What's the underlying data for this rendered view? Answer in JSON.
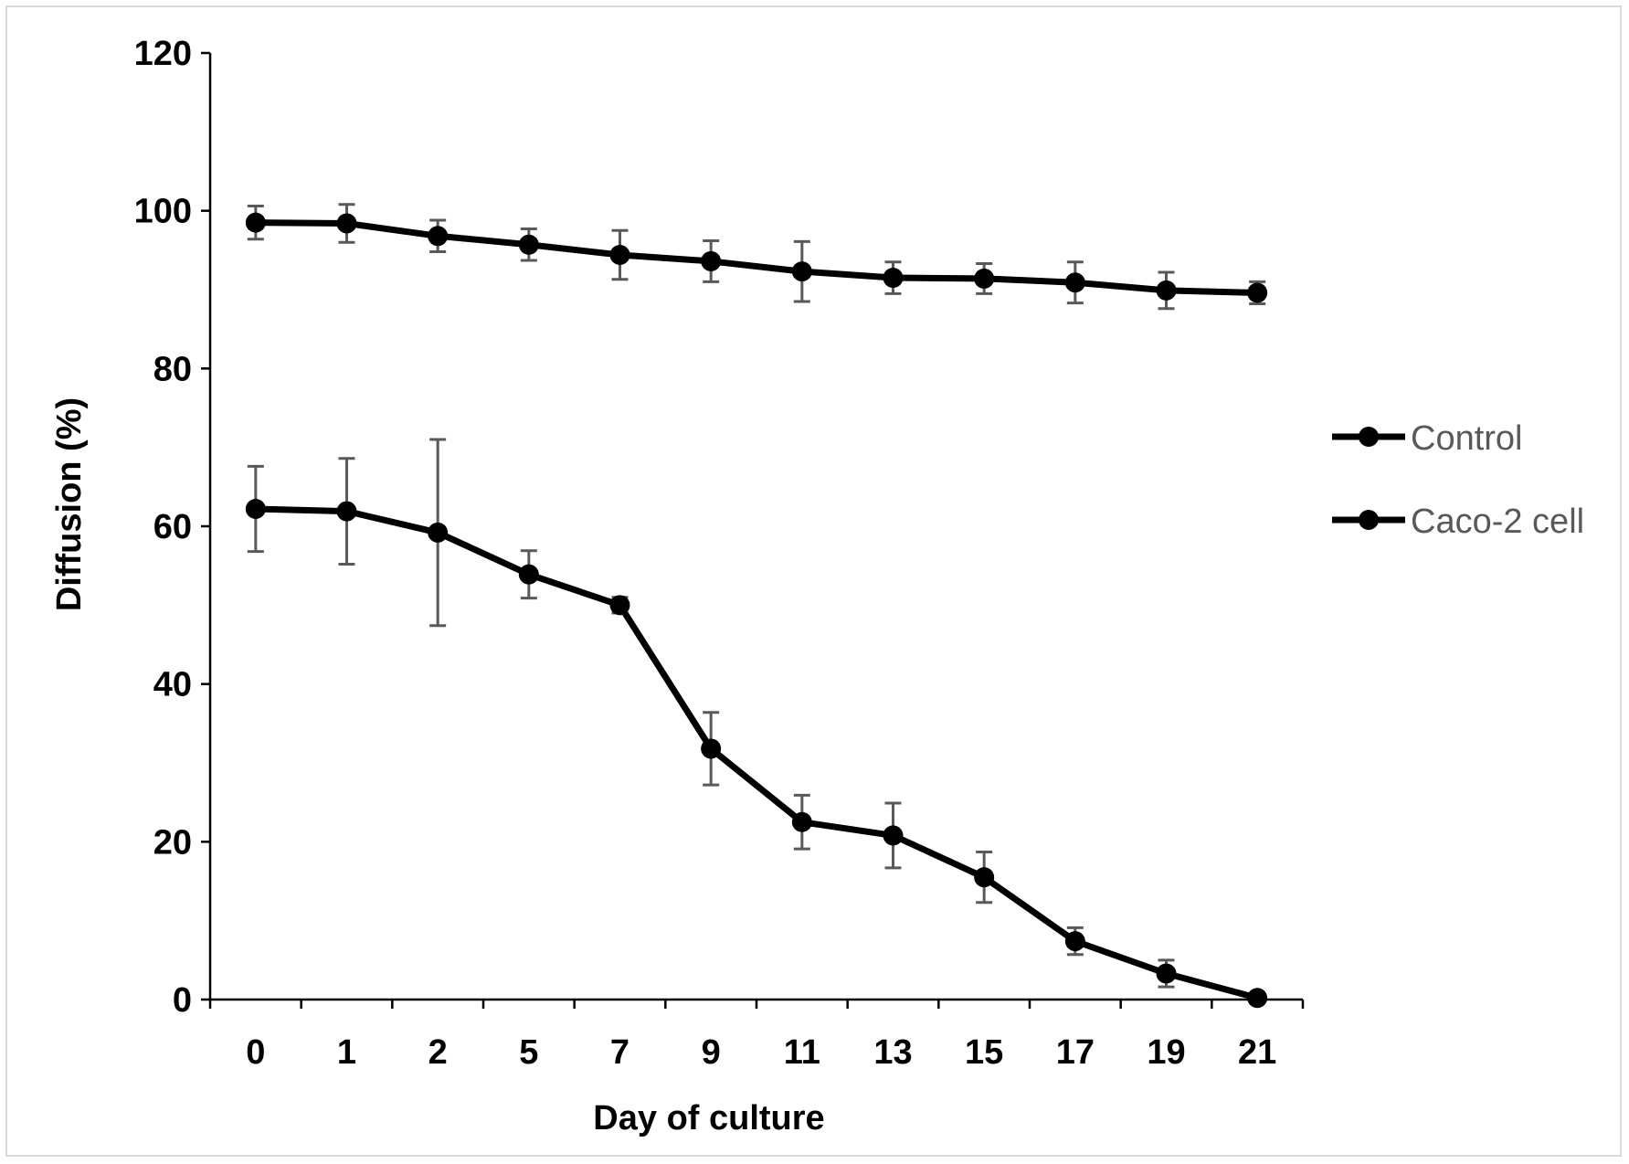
{
  "chart_data": {
    "type": "line",
    "xlabel": "Day of culture",
    "ylabel": "Diffusion (%)",
    "categories": [
      "0",
      "1",
      "2",
      "5",
      "7",
      "9",
      "11",
      "13",
      "15",
      "17",
      "19",
      "21"
    ],
    "ylim": [
      0,
      120
    ],
    "yticks": [
      "0",
      "20",
      "40",
      "60",
      "80",
      "100",
      "120"
    ],
    "grid": false,
    "legend_position": "right",
    "series": [
      {
        "name": "Control",
        "color": "#000000",
        "values": [
          98.5,
          98.4,
          96.8,
          95.7,
          94.4,
          93.6,
          92.3,
          91.5,
          91.4,
          90.9,
          89.9,
          89.6
        ],
        "errors": [
          2.1,
          2.4,
          2.0,
          2.0,
          3.1,
          2.6,
          3.8,
          2.0,
          1.9,
          2.6,
          2.3,
          1.4
        ]
      },
      {
        "name": "Caco-2 cell",
        "color": "#000000",
        "values": [
          62.2,
          61.9,
          59.2,
          53.9,
          50.0,
          31.8,
          22.5,
          20.8,
          15.5,
          7.4,
          3.3,
          0.2
        ],
        "errors": [
          5.4,
          6.7,
          11.8,
          3.0,
          1.0,
          4.6,
          3.4,
          4.1,
          3.2,
          1.7,
          1.7,
          0.3
        ]
      }
    ]
  }
}
